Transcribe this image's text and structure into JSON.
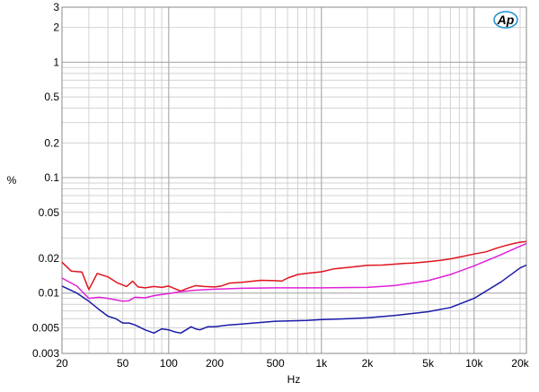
{
  "chart_data": {
    "type": "line",
    "title": "",
    "xlabel": "Hz",
    "ylabel": "%",
    "x_scale": "log",
    "y_scale": "log",
    "xlim": [
      20,
      22000
    ],
    "ylim": [
      0.003,
      3
    ],
    "grid": true,
    "legend": "none",
    "logo_text": "Ap",
    "x_ticks": [
      {
        "value": 20,
        "label": "20"
      },
      {
        "value": 50,
        "label": "50"
      },
      {
        "value": 100,
        "label": "100"
      },
      {
        "value": 200,
        "label": "200"
      },
      {
        "value": 500,
        "label": "500"
      },
      {
        "value": 1000,
        "label": "1k"
      },
      {
        "value": 2000,
        "label": "2k"
      },
      {
        "value": 5000,
        "label": "5k"
      },
      {
        "value": 10000,
        "label": "10k"
      },
      {
        "value": 20000,
        "label": "20k"
      }
    ],
    "y_ticks": [
      {
        "value": 3,
        "label": "3"
      },
      {
        "value": 2,
        "label": "2"
      },
      {
        "value": 1,
        "label": "1"
      },
      {
        "value": 0.5,
        "label": "0.5"
      },
      {
        "value": 0.2,
        "label": "0.2"
      },
      {
        "value": 0.1,
        "label": "0.1"
      },
      {
        "value": 0.05,
        "label": "0.05"
      },
      {
        "value": 0.02,
        "label": "0.02"
      },
      {
        "value": 0.01,
        "label": "0.01"
      },
      {
        "value": 0.005,
        "label": "0.005"
      },
      {
        "value": 0.003,
        "label": "0.003"
      }
    ],
    "series": [
      {
        "color": "#e0141e",
        "x": [
          20,
          23,
          27,
          30,
          34,
          40,
          46,
          53,
          58,
          63,
          70,
          80,
          90,
          100,
          110,
          120,
          130,
          150,
          170,
          200,
          220,
          250,
          300,
          400,
          500,
          550,
          600,
          700,
          800,
          1000,
          1200,
          1500,
          2000,
          2500,
          3000,
          3500,
          4000,
          5000,
          6000,
          7000,
          8000,
          10000,
          12000,
          14000,
          16000,
          18000,
          20000,
          22000
        ],
        "y": [
          0.0185,
          0.0155,
          0.0152,
          0.0107,
          0.0148,
          0.0138,
          0.0123,
          0.0114,
          0.0127,
          0.0113,
          0.0111,
          0.0114,
          0.0112,
          0.0115,
          0.0109,
          0.0104,
          0.0109,
          0.0116,
          0.0114,
          0.0113,
          0.0115,
          0.0122,
          0.0124,
          0.0129,
          0.0128,
          0.0127,
          0.0135,
          0.0145,
          0.0148,
          0.0153,
          0.0162,
          0.0167,
          0.0174,
          0.0175,
          0.0178,
          0.0181,
          0.0182,
          0.0187,
          0.0192,
          0.0198,
          0.0205,
          0.0218,
          0.0228,
          0.0245,
          0.0258,
          0.0268,
          0.0276,
          0.028
        ]
      },
      {
        "color": "#e020d8",
        "x": [
          20,
          25,
          30,
          35,
          40,
          50,
          55,
          60,
          70,
          80,
          100,
          120,
          150,
          200,
          300,
          500,
          1000,
          2000,
          3000,
          5000,
          7000,
          10000,
          15000,
          20000,
          22000
        ],
        "y": [
          0.0135,
          0.0115,
          0.009,
          0.0092,
          0.009,
          0.0085,
          0.0086,
          0.0092,
          0.0091,
          0.0095,
          0.0099,
          0.0103,
          0.0106,
          0.0108,
          0.011,
          0.0111,
          0.0111,
          0.0112,
          0.0116,
          0.0128,
          0.0145,
          0.0172,
          0.0215,
          0.0255,
          0.0268
        ]
      },
      {
        "color": "#1a1aa8",
        "x": [
          20,
          25,
          30,
          35,
          40,
          45,
          50,
          55,
          60,
          70,
          80,
          90,
          100,
          110,
          120,
          130,
          140,
          150,
          160,
          180,
          200,
          250,
          300,
          500,
          800,
          1000,
          1500,
          2000,
          3000,
          5000,
          7000,
          10000,
          15000,
          20000,
          22000
        ],
        "y": [
          0.0115,
          0.01,
          0.0085,
          0.0072,
          0.0063,
          0.006,
          0.0055,
          0.0055,
          0.0053,
          0.0048,
          0.0045,
          0.0049,
          0.0048,
          0.0046,
          0.0045,
          0.0048,
          0.0051,
          0.0049,
          0.0048,
          0.0051,
          0.0051,
          0.0053,
          0.0054,
          0.0057,
          0.0058,
          0.0059,
          0.006,
          0.0061,
          0.0064,
          0.0069,
          0.0075,
          0.009,
          0.0125,
          0.0165,
          0.0175
        ]
      }
    ]
  }
}
